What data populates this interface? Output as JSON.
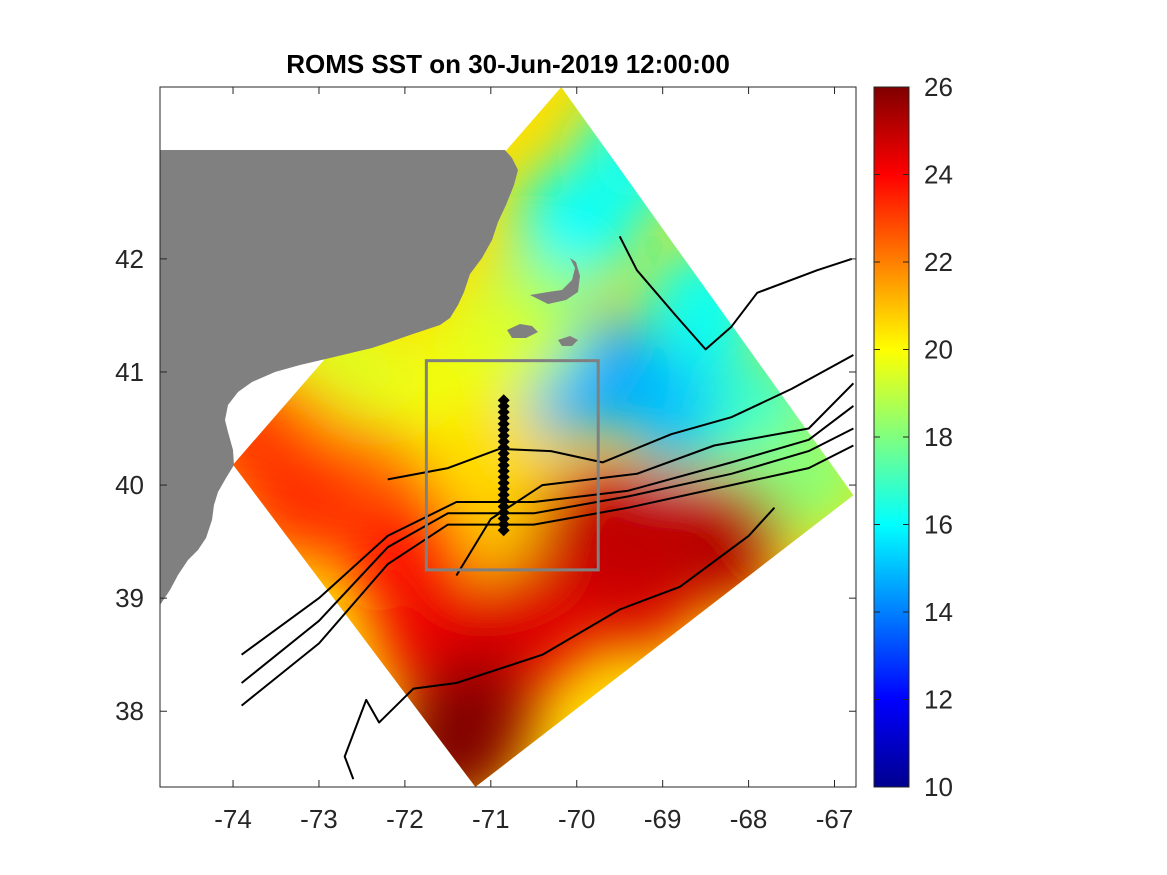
{
  "chart_data": {
    "type": "heatmap",
    "title": "ROMS SST on 30-Jun-2019 12:00:00",
    "xlabel": "",
    "ylabel": "",
    "xlim": [
      -74.85,
      -66.75
    ],
    "ylim": [
      37.33,
      43.52
    ],
    "x_ticks": [
      -74,
      -73,
      -72,
      -71,
      -70,
      -69,
      -68,
      -67
    ],
    "y_ticks": [
      38,
      39,
      40,
      41,
      42
    ],
    "colorbar": {
      "colormap": "jet",
      "range": [
        10,
        26
      ],
      "ticks": [
        10,
        12,
        14,
        16,
        18,
        20,
        22,
        24,
        26
      ]
    },
    "model_domain_corners": [
      {
        "lon": -74.0,
        "lat": 40.18
      },
      {
        "lon": -70.18,
        "lat": 43.52
      },
      {
        "lon": -66.78,
        "lat": 39.91
      },
      {
        "lon": -71.18,
        "lat": 37.33
      }
    ],
    "sst_field": [
      {
        "lon": -69.8,
        "lat": 41.0,
        "sst": 14.0
      },
      {
        "lon": -70.3,
        "lat": 40.9,
        "sst": 14.8
      },
      {
        "lon": -68.8,
        "lat": 40.7,
        "sst": 15.0
      },
      {
        "lon": -70.0,
        "lat": 42.3,
        "sst": 16.0
      },
      {
        "lon": -69.3,
        "lat": 42.9,
        "sst": 16.3
      },
      {
        "lon": -68.5,
        "lat": 41.6,
        "sst": 16.2
      },
      {
        "lon": -67.8,
        "lat": 40.6,
        "sst": 16.8
      },
      {
        "lon": -67.3,
        "lat": 40.1,
        "sst": 18.2
      },
      {
        "lon": -70.5,
        "lat": 41.5,
        "sst": 18.4
      },
      {
        "lon": -71.0,
        "lat": 41.2,
        "sst": 19.5
      },
      {
        "lon": -71.6,
        "lat": 40.7,
        "sst": 19.8
      },
      {
        "lon": -72.8,
        "lat": 41.0,
        "sst": 19.5
      },
      {
        "lon": -71.0,
        "lat": 40.2,
        "sst": 20.5
      },
      {
        "lon": -70.6,
        "lat": 39.55,
        "sst": 20.8
      },
      {
        "lon": -73.3,
        "lat": 40.4,
        "sst": 21.2
      },
      {
        "lon": -72.4,
        "lat": 40.0,
        "sst": 22.2
      },
      {
        "lon": -73.8,
        "lat": 40.45,
        "sst": 23.0
      },
      {
        "lon": -73.2,
        "lat": 39.9,
        "sst": 23.3
      },
      {
        "lon": -72.0,
        "lat": 39.4,
        "sst": 23.6
      },
      {
        "lon": -71.6,
        "lat": 38.7,
        "sst": 24.3
      },
      {
        "lon": -70.5,
        "lat": 38.8,
        "sst": 24.5
      },
      {
        "lon": -69.3,
        "lat": 39.1,
        "sst": 24.6
      },
      {
        "lon": -69.8,
        "lat": 39.6,
        "sst": 24.8
      },
      {
        "lon": -68.3,
        "lat": 39.5,
        "sst": 25.2
      },
      {
        "lon": -71.2,
        "lat": 38.0,
        "sst": 25.6
      },
      {
        "lon": -71.4,
        "lat": 37.7,
        "sst": 26.0
      },
      {
        "lon": -69.3,
        "lat": 39.6,
        "sst": 25.0
      }
    ],
    "bathymetry_contours": [
      [
        {
          "lon": -71.4,
          "lat": 39.2
        },
        {
          "lon": -71.0,
          "lat": 39.7
        },
        {
          "lon": -70.4,
          "lat": 40.0
        },
        {
          "lon": -69.3,
          "lat": 40.1
        },
        {
          "lon": -68.4,
          "lat": 40.35
        },
        {
          "lon": -67.3,
          "lat": 40.5
        },
        {
          "lon": -66.78,
          "lat": 40.9
        }
      ],
      [
        {
          "lon": -73.9,
          "lat": 38.5
        },
        {
          "lon": -73.0,
          "lat": 39.0
        },
        {
          "lon": -72.2,
          "lat": 39.55
        },
        {
          "lon": -71.4,
          "lat": 39.85
        },
        {
          "lon": -70.5,
          "lat": 39.85
        },
        {
          "lon": -69.4,
          "lat": 39.95
        },
        {
          "lon": -68.2,
          "lat": 40.2
        },
        {
          "lon": -67.3,
          "lat": 40.4
        },
        {
          "lon": -66.78,
          "lat": 40.7
        }
      ],
      [
        {
          "lon": -73.9,
          "lat": 38.25
        },
        {
          "lon": -73.0,
          "lat": 38.8
        },
        {
          "lon": -72.2,
          "lat": 39.45
        },
        {
          "lon": -71.5,
          "lat": 39.75
        },
        {
          "lon": -70.5,
          "lat": 39.75
        },
        {
          "lon": -69.4,
          "lat": 39.9
        },
        {
          "lon": -68.2,
          "lat": 40.1
        },
        {
          "lon": -67.3,
          "lat": 40.3
        },
        {
          "lon": -66.78,
          "lat": 40.5
        }
      ],
      [
        {
          "lon": -73.9,
          "lat": 38.05
        },
        {
          "lon": -73.0,
          "lat": 38.6
        },
        {
          "lon": -72.2,
          "lat": 39.3
        },
        {
          "lon": -71.5,
          "lat": 39.65
        },
        {
          "lon": -70.5,
          "lat": 39.65
        },
        {
          "lon": -69.4,
          "lat": 39.8
        },
        {
          "lon": -68.2,
          "lat": 40.0
        },
        {
          "lon": -67.3,
          "lat": 40.15
        },
        {
          "lon": -66.78,
          "lat": 40.35
        }
      ],
      [
        {
          "lon": -72.2,
          "lat": 40.05
        },
        {
          "lon": -71.5,
          "lat": 40.15
        },
        {
          "lon": -70.9,
          "lat": 40.32
        },
        {
          "lon": -70.3,
          "lat": 40.3
        },
        {
          "lon": -69.7,
          "lat": 40.2
        },
        {
          "lon": -68.9,
          "lat": 40.45
        },
        {
          "lon": -68.2,
          "lat": 40.6
        },
        {
          "lon": -67.5,
          "lat": 40.85
        },
        {
          "lon": -66.78,
          "lat": 41.15
        }
      ],
      [
        {
          "lon": -69.5,
          "lat": 42.2
        },
        {
          "lon": -69.3,
          "lat": 41.9
        },
        {
          "lon": -68.85,
          "lat": 41.5
        },
        {
          "lon": -68.5,
          "lat": 41.2
        },
        {
          "lon": -68.2,
          "lat": 41.4
        },
        {
          "lon": -67.9,
          "lat": 41.7
        },
        {
          "lon": -67.2,
          "lat": 41.9
        },
        {
          "lon": -66.8,
          "lat": 42.0
        }
      ],
      [
        {
          "lon": -72.6,
          "lat": 37.4
        },
        {
          "lon": -72.7,
          "lat": 37.6
        },
        {
          "lon": -72.45,
          "lat": 38.1
        },
        {
          "lon": -72.3,
          "lat": 37.9
        },
        {
          "lon": -71.9,
          "lat": 38.2
        },
        {
          "lon": -71.4,
          "lat": 38.25
        },
        {
          "lon": -70.4,
          "lat": 38.5
        },
        {
          "lon": -69.5,
          "lat": 38.9
        },
        {
          "lon": -68.8,
          "lat": 39.1
        },
        {
          "lon": -68.0,
          "lat": 39.55
        },
        {
          "lon": -67.7,
          "lat": 39.8
        }
      ]
    ],
    "box": {
      "lon_min": -71.75,
      "lon_max": -69.75,
      "lat_min": 39.25,
      "lat_max": 41.1
    },
    "transect": {
      "lon": -70.85,
      "lat_start": 39.6,
      "lat_end": 40.75,
      "points": 23
    }
  }
}
